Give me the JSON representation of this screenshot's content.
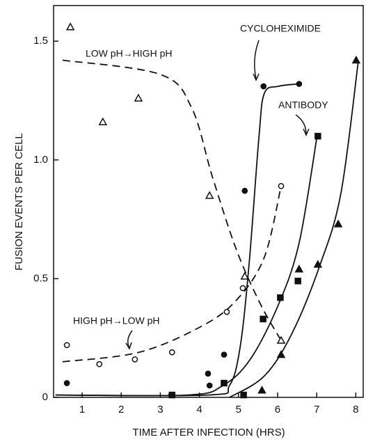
{
  "chart_data": {
    "type": "scatter",
    "xlabel": "TIME AFTER INFECTION (HRS)",
    "ylabel": "FUSION EVENTS PER CELL",
    "xlim": [
      0.27,
      8.19
    ],
    "ylim": [
      0,
      1.65
    ],
    "xticks": [
      1,
      2,
      3,
      4,
      5,
      6,
      7,
      8
    ],
    "yticks": [
      0,
      0.5,
      {
        "value": 1.0,
        "label": "1.0"
      },
      1.5
    ],
    "color": "#111111",
    "series": [
      {
        "name": "LOW pH→HIGH pH",
        "marker": "open-triangle",
        "dash": true,
        "x": [
          0.7,
          1.53,
          2.44,
          4.26,
          5.16,
          6.09
        ],
        "values": [
          1.56,
          1.16,
          1.26,
          0.85,
          0.51,
          0.24
        ],
        "fit_x": [
          0.5,
          3.0,
          3.8,
          4.33,
          4.95,
          5.57,
          6.09
        ],
        "fit_values": [
          1.42,
          1.36,
          1.22,
          0.93,
          0.62,
          0.39,
          0.24
        ]
      },
      {
        "name": "HIGH pH→LOW pH",
        "marker": "open-circle",
        "dash": true,
        "x": [
          0.61,
          1.44,
          2.35,
          3.3,
          4.7,
          5.11,
          6.09
        ],
        "values": [
          0.22,
          0.14,
          0.16,
          0.19,
          0.36,
          0.46,
          0.89
        ],
        "fit_x": [
          0.5,
          2.46,
          4.06,
          4.95,
          5.66,
          6.09
        ],
        "fit_values": [
          0.15,
          0.19,
          0.3,
          0.41,
          0.59,
          0.89
        ]
      },
      {
        "name": "CYCLOHEXIMIDE",
        "marker": "filled-circle",
        "dash": false,
        "x": [
          0.61,
          3.28,
          4.26,
          4.22,
          4.63,
          5.16,
          5.64,
          6.55
        ],
        "values": [
          0.06,
          0.01,
          0.05,
          0.1,
          0.18,
          0.87,
          1.31,
          1.32
        ],
        "fit_x": [
          0.32,
          4.24,
          4.77,
          5.04,
          5.27,
          5.52,
          5.66,
          6.02,
          6.55
        ],
        "fit_values": [
          0.01,
          0.01,
          0.05,
          0.21,
          0.56,
          1.09,
          1.28,
          1.31,
          1.32
        ]
      },
      {
        "name": "ANTIBODY",
        "marker": "filled-square",
        "dash": false,
        "x": [
          3.3,
          4.63,
          5.13,
          5.63,
          6.07,
          6.52,
          7.03
        ],
        "values": [
          0.01,
          0.06,
          0.01,
          0.33,
          0.42,
          0.49,
          1.1
        ],
        "fit_x": [
          0.32,
          3.7,
          4.6,
          5.3,
          6.02,
          6.55,
          7.0
        ],
        "fit_values": [
          0.01,
          0.01,
          0.05,
          0.16,
          0.39,
          0.65,
          1.09
        ]
      },
      {
        "marker": "filled-triangle",
        "dash": false,
        "x": [
          5.6,
          6.09,
          6.55,
          7.03,
          7.55,
          8.01
        ],
        "values": [
          0.03,
          0.18,
          0.54,
          0.56,
          0.73,
          1.42
        ],
        "fit_x": [
          4.77,
          5.66,
          6.37,
          7.09,
          7.62,
          8.06
        ],
        "fit_values": [
          0.0,
          0.09,
          0.27,
          0.56,
          0.86,
          1.41
        ]
      }
    ]
  }
}
